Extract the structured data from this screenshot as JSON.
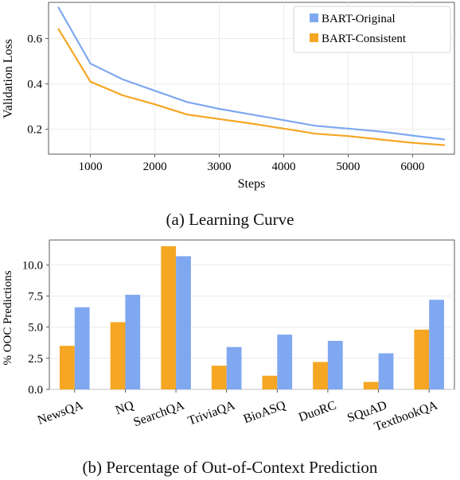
{
  "figure": {
    "caption_a": "(a) Learning Curve",
    "caption_b": "(b) Percentage of Out-of-Context Prediction"
  },
  "chart_data": [
    {
      "type": "line",
      "title": "",
      "xlabel": "Steps",
      "ylabel": "Validation Loss",
      "xlim": [
        350,
        6650
      ],
      "ylim": [
        0.09,
        0.76
      ],
      "xticks": [
        1000,
        2000,
        3000,
        4000,
        5000,
        6000
      ],
      "yticks": [
        0.2,
        0.4,
        0.6
      ],
      "ytick_labels": [
        "0.2",
        "0.4",
        "0.6"
      ],
      "grid": true,
      "legend": "top-right",
      "x": [
        500,
        1000,
        1500,
        2000,
        2500,
        3000,
        3500,
        4000,
        4500,
        5000,
        5500,
        6000,
        6500
      ],
      "series": [
        {
          "name": "BART-Original",
          "color": "#7fa8f0",
          "values": [
            0.74,
            0.49,
            0.42,
            0.37,
            0.32,
            0.29,
            0.265,
            0.24,
            0.215,
            0.203,
            0.19,
            0.172,
            0.155
          ]
        },
        {
          "name": "BART-Consistent",
          "color": "#f5a623",
          "values": [
            0.645,
            0.41,
            0.35,
            0.31,
            0.265,
            0.245,
            0.225,
            0.203,
            0.18,
            0.17,
            0.155,
            0.14,
            0.13
          ]
        }
      ]
    },
    {
      "type": "bar",
      "title": "",
      "xlabel": "",
      "ylabel": "% OOC Predictions",
      "ylim": [
        0,
        12.0
      ],
      "yticks": [
        0.0,
        2.5,
        5.0,
        7.5,
        10.0
      ],
      "ytick_labels": [
        "0.0",
        "2.5",
        "5.0",
        "7.5",
        "10.0"
      ],
      "grid": true,
      "categories": [
        "NewsQA",
        "NQ",
        "SearchQA",
        "TriviaQA",
        "BioASQ",
        "DuoRC",
        "SQuAD",
        "TextbookQA"
      ],
      "series": [
        {
          "name": "BART-Consistent",
          "color": "#f5a623",
          "values": [
            3.5,
            5.4,
            11.5,
            1.9,
            1.1,
            2.2,
            0.6,
            4.8
          ]
        },
        {
          "name": "BART-Original",
          "color": "#7fa8f0",
          "values": [
            6.6,
            7.6,
            10.7,
            3.4,
            4.4,
            3.9,
            2.9,
            7.2
          ]
        }
      ]
    }
  ]
}
